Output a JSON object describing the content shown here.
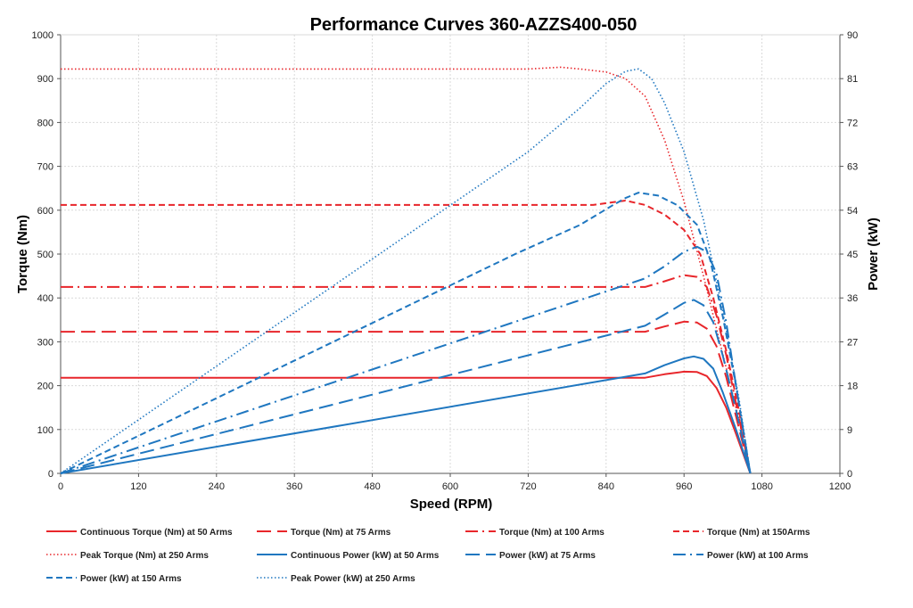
{
  "chart_data": {
    "type": "line",
    "title": "Performance Curves 360-AZZS400-050",
    "xlabel": "Speed (RPM)",
    "ylabel": "Torque (Nm)",
    "y2label": "Power (kW)",
    "xlim": [
      0,
      1200
    ],
    "ylim": [
      0,
      1000
    ],
    "y2lim": [
      0,
      90
    ],
    "xticks": [
      "0",
      "120",
      "240",
      "360",
      "480",
      "600",
      "720",
      "840",
      "960",
      "1080",
      "1200"
    ],
    "yticks": [
      "0",
      "100",
      "200",
      "300",
      "400",
      "500",
      "600",
      "700",
      "800",
      "900",
      "1000"
    ],
    "y2ticks": [
      "0",
      "9",
      "18",
      "27",
      "36",
      "45",
      "54",
      "63",
      "72",
      "81",
      "90"
    ],
    "grid": true,
    "legend_position": "bottom",
    "colors": {
      "torque": "#e8262b",
      "power": "#1f77c0"
    },
    "series": [
      {
        "name": "Continuous Torque (Nm) at 50 Arms",
        "axis": "left",
        "color": "#e8262b",
        "dash": "solid",
        "x": [
          0,
          900,
          930,
          960,
          980,
          995,
          1010,
          1025,
          1040,
          1062
        ],
        "y": [
          218,
          218,
          226,
          232,
          231,
          222,
          195,
          150,
          90,
          0
        ]
      },
      {
        "name": "Torque (Nm) at 75 Arms",
        "axis": "left",
        "color": "#e8262b",
        "dash": "longdash",
        "x": [
          0,
          900,
          930,
          960,
          980,
          995,
          1010,
          1025,
          1040,
          1062
        ],
        "y": [
          323,
          323,
          335,
          346,
          344,
          330,
          290,
          220,
          130,
          0
        ]
      },
      {
        "name": "Torque (Nm) at 100 Arms",
        "axis": "left",
        "color": "#e8262b",
        "dash": "dashdot",
        "x": [
          0,
          900,
          930,
          960,
          980,
          995,
          1010,
          1025,
          1040,
          1062
        ],
        "y": [
          425,
          425,
          438,
          452,
          448,
          425,
          360,
          270,
          160,
          0
        ]
      },
      {
        "name": "Torque (Nm) at 150Arms",
        "axis": "left",
        "color": "#e8262b",
        "dash": "dash",
        "x": [
          0,
          820,
          850,
          870,
          900,
          930,
          960,
          985,
          1005,
          1025,
          1045,
          1062
        ],
        "y": [
          612,
          612,
          618,
          622,
          612,
          590,
          555,
          500,
          400,
          280,
          140,
          0
        ]
      },
      {
        "name": "Peak Torque (Nm) at 250  Arms",
        "axis": "left",
        "color": "#e8262b",
        "dash": "dot",
        "x": [
          0,
          720,
          770,
          800,
          840,
          870,
          900,
          930,
          960,
          990,
          1020,
          1045,
          1062
        ],
        "y": [
          922,
          922,
          926,
          922,
          915,
          900,
          860,
          760,
          620,
          450,
          270,
          120,
          0
        ]
      },
      {
        "name": "Continuous Power (kW) at 50 Arms",
        "axis": "right",
        "color": "#1f77c0",
        "dash": "solid",
        "x": [
          0,
          900,
          930,
          960,
          975,
          990,
          1005,
          1020,
          1040,
          1062
        ],
        "y": [
          0,
          20.5,
          22.2,
          23.6,
          24.0,
          23.5,
          21.5,
          16.5,
          9.0,
          0
        ]
      },
      {
        "name": "Power (kW) at 75 Arms",
        "axis": "right",
        "color": "#1f77c0",
        "dash": "longdash",
        "x": [
          0,
          900,
          930,
          960,
          975,
          990,
          1005,
          1020,
          1040,
          1062
        ],
        "y": [
          0,
          30.3,
          32.6,
          35.0,
          35.6,
          34.5,
          31.0,
          24.0,
          13.0,
          0
        ]
      },
      {
        "name": "Power (kW) at 100 Arms",
        "axis": "right",
        "color": "#1f77c0",
        "dash": "dashdot",
        "x": [
          0,
          900,
          930,
          960,
          980,
          995,
          1010,
          1025,
          1040,
          1062
        ],
        "y": [
          0,
          40.0,
          42.5,
          45.5,
          46.5,
          45.5,
          41.0,
          31.0,
          18.0,
          0
        ]
      },
      {
        "name": "Power (kW) at 150 Arms",
        "axis": "right",
        "color": "#1f77c0",
        "dash": "dash",
        "x": [
          0,
          700,
          800,
          850,
          870,
          890,
          920,
          950,
          980,
          1000,
          1020,
          1040,
          1062
        ],
        "y": [
          0,
          45.0,
          51.0,
          55.0,
          56.5,
          57.6,
          57.0,
          55.0,
          51.0,
          44.0,
          32.0,
          18.0,
          0
        ]
      },
      {
        "name": "Peak Power (kW) at 250 Arms",
        "axis": "right",
        "color": "#1f77c0",
        "dash": "dot",
        "x": [
          0,
          600,
          720,
          800,
          840,
          870,
          890,
          910,
          930,
          960,
          990,
          1020,
          1045,
          1062
        ],
        "y": [
          0,
          55.0,
          66.0,
          75.0,
          80.0,
          82.5,
          83.0,
          81.0,
          76.0,
          66.0,
          52.0,
          33.0,
          15.0,
          0
        ]
      }
    ]
  }
}
